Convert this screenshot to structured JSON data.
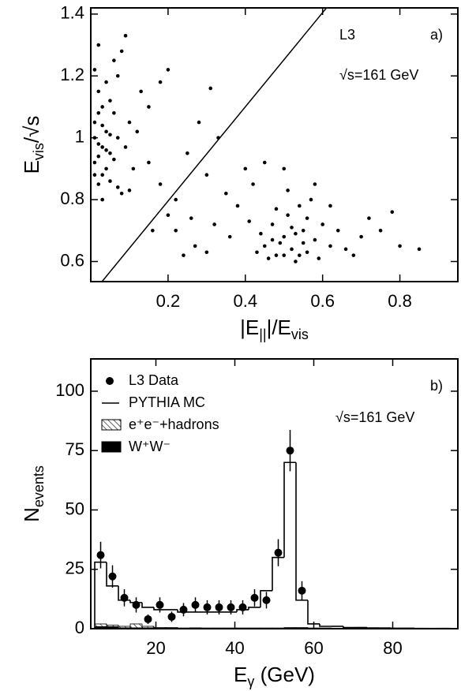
{
  "chart_data": [
    {
      "type": "scatter",
      "xlabel": [
        {
          "text": "|E"
        },
        {
          "text": "||",
          "sub": true
        },
        {
          "text": "|/E"
        },
        {
          "text": "vis",
          "sub": true
        }
      ],
      "ylabel": [
        {
          "text": "E"
        },
        {
          "text": "vis",
          "sub": true
        },
        {
          "text": "/√s"
        }
      ],
      "annotations": {
        "experiment": "L3",
        "energy": "√s=161 GeV",
        "panel": "a)"
      },
      "xlim": [
        0,
        0.95
      ],
      "ylim": [
        0.535,
        1.42
      ],
      "xticks": [
        0.2,
        0.4,
        0.6,
        0.8
      ],
      "yticks": [
        0.6,
        0.8,
        1,
        1.2,
        1.4
      ],
      "color": "#000000",
      "cut_line": {
        "x": [
          0.029,
          0.61
        ],
        "y": [
          0.535,
          1.42
        ]
      },
      "x": [
        0.01,
        0.02,
        0.03,
        0.01,
        0.04,
        0.02,
        0.05,
        0.03,
        0.06,
        0.01,
        0.02,
        0.04,
        0.07,
        0.03,
        0.05,
        0.02,
        0.08,
        0.06,
        0.01,
        0.09,
        0.04,
        0.03,
        0.1,
        0.07,
        0.02,
        0.05,
        0.08,
        0.11,
        0.06,
        0.12,
        0.09,
        0.04,
        0.13,
        0.01,
        0.07,
        0.15,
        0.1,
        0.03,
        0.05,
        0.02,
        0.15,
        0.18,
        0.2,
        0.22,
        0.25,
        0.28,
        0.3,
        0.32,
        0.2,
        0.18,
        0.35,
        0.38,
        0.27,
        0.24,
        0.33,
        0.4,
        0.36,
        0.42,
        0.3,
        0.45,
        0.5,
        0.31,
        0.22,
        0.16,
        0.26,
        0.45,
        0.48,
        0.5,
        0.52,
        0.55,
        0.47,
        0.53,
        0.49,
        0.51,
        0.56,
        0.44,
        0.58,
        0.54,
        0.46,
        0.6,
        0.5,
        0.52,
        0.57,
        0.43,
        0.55,
        0.48,
        0.62,
        0.53,
        0.59,
        0.41,
        0.51,
        0.64,
        0.56,
        0.47,
        0.66,
        0.58,
        0.7,
        0.62,
        0.54,
        0.72,
        0.68,
        0.75,
        0.8,
        0.78,
        0.85
      ],
      "y": [
        1.05,
        0.98,
        1.1,
        0.92,
        1.02,
        1.15,
        0.95,
        0.88,
        1.08,
        1.22,
        0.85,
        0.9,
        1.0,
        1.04,
        1.12,
        1.3,
        0.82,
        0.93,
        1.0,
        0.97,
        1.18,
        0.8,
        1.05,
        1.2,
        1.08,
        0.86,
        1.28,
        0.9,
        1.25,
        1.02,
        1.33,
        0.96,
        1.15,
        0.88,
        0.84,
        1.1,
        0.83,
        0.97,
        1.01,
        0.94,
        0.92,
        0.85,
        0.75,
        0.7,
        0.95,
        1.05,
        0.88,
        0.72,
        1.22,
        1.18,
        0.82,
        0.78,
        0.65,
        0.62,
        1.0,
        0.9,
        0.68,
        0.85,
        0.63,
        0.92,
        0.9,
        1.16,
        0.8,
        0.7,
        0.74,
        0.65,
        0.62,
        0.68,
        0.64,
        0.7,
        0.72,
        0.6,
        0.66,
        0.75,
        0.63,
        0.69,
        0.67,
        0.78,
        0.61,
        0.72,
        0.62,
        0.71,
        0.8,
        0.63,
        0.66,
        0.77,
        0.65,
        0.69,
        0.61,
        0.73,
        0.83,
        0.7,
        0.74,
        0.67,
        0.64,
        0.85,
        0.68,
        0.78,
        0.62,
        0.74,
        0.62,
        0.7,
        0.65,
        0.76,
        0.64
      ]
    },
    {
      "type": "histogram",
      "xlabel": [
        {
          "text": "E"
        },
        {
          "text": "γ",
          "sub": true
        },
        {
          "text": " (GeV)"
        }
      ],
      "ylabel": [
        {
          "text": "N"
        },
        {
          "text": "events",
          "sub": true
        }
      ],
      "annotations": {
        "energy": "√s=161 GeV",
        "panel": "b)"
      },
      "xlim": [
        3.5,
        96.5
      ],
      "ylim": [
        0,
        113.6
      ],
      "xticks": [
        20,
        40,
        60,
        80
      ],
      "yticks": [
        0,
        25,
        50,
        75,
        100
      ],
      "legend": "upper left",
      "bins": [
        4.5,
        7.5,
        10.5,
        13.5,
        16.5,
        19.5,
        22.5,
        25.5,
        28.5,
        31.5,
        34.5,
        37.5,
        40.5,
        43.5,
        46.5,
        49.5,
        52.5,
        55.5,
        58.5,
        61.5,
        64.5,
        67.5,
        70.5,
        73.5,
        76.5,
        79.5,
        82.5,
        85.5,
        88.5,
        91.5,
        94.5
      ],
      "series": [
        {
          "name": "PYTHIA MC",
          "style": "step",
          "color": "#000000",
          "values": [
            28,
            18,
            12,
            11,
            9,
            8,
            8,
            7,
            7,
            7,
            7,
            7,
            8,
            9,
            16,
            30,
            70,
            12,
            2,
            1,
            1,
            0.5,
            0.5,
            0.3,
            0.3,
            0.2,
            0.2,
            0.1,
            0.1,
            0.1
          ]
        },
        {
          "name": "e⁺e⁻+hadrons",
          "style": "hatch",
          "color": "#000000",
          "values": [
            2,
            1.5,
            1,
            2,
            1,
            0.5,
            0.5,
            0.3,
            0.3,
            0.3,
            0.3,
            0.3,
            0.3,
            0.3,
            0.3,
            0.3,
            0.5,
            0.5,
            0.3,
            0.3,
            0.2,
            0.2,
            0.1,
            0.1,
            0.1,
            0.1,
            0,
            0,
            0,
            0
          ]
        },
        {
          "name": "W⁺W⁻",
          "style": "fill",
          "color": "#000000",
          "values": [
            1,
            1,
            0.5,
            0.5,
            0.5,
            0.3,
            0.3,
            0.3,
            0.5,
            0.3,
            0.3,
            0.3,
            0.3,
            0.3,
            0.3,
            0.3,
            0.3,
            0.3,
            0.2,
            0.2,
            0.2,
            0.1,
            0.1,
            0.1,
            0.1,
            0,
            0,
            0,
            0,
            0
          ]
        }
      ],
      "points": {
        "name": "L3 Data",
        "color": "#000000",
        "x": [
          6,
          9,
          12,
          15,
          18,
          21,
          24,
          27,
          30,
          33,
          36,
          39,
          42,
          45,
          48,
          51,
          54,
          57
        ],
        "values": [
          31,
          22,
          13,
          10,
          4,
          10,
          5,
          8,
          10,
          9,
          9,
          9,
          9,
          13,
          12,
          32,
          75,
          16
        ],
        "errors": [
          5.6,
          4.7,
          3.6,
          3.2,
          2,
          3.2,
          2.2,
          2.8,
          3.2,
          3,
          3,
          3,
          3,
          3.6,
          3.5,
          5.7,
          8.7,
          4
        ]
      }
    }
  ]
}
